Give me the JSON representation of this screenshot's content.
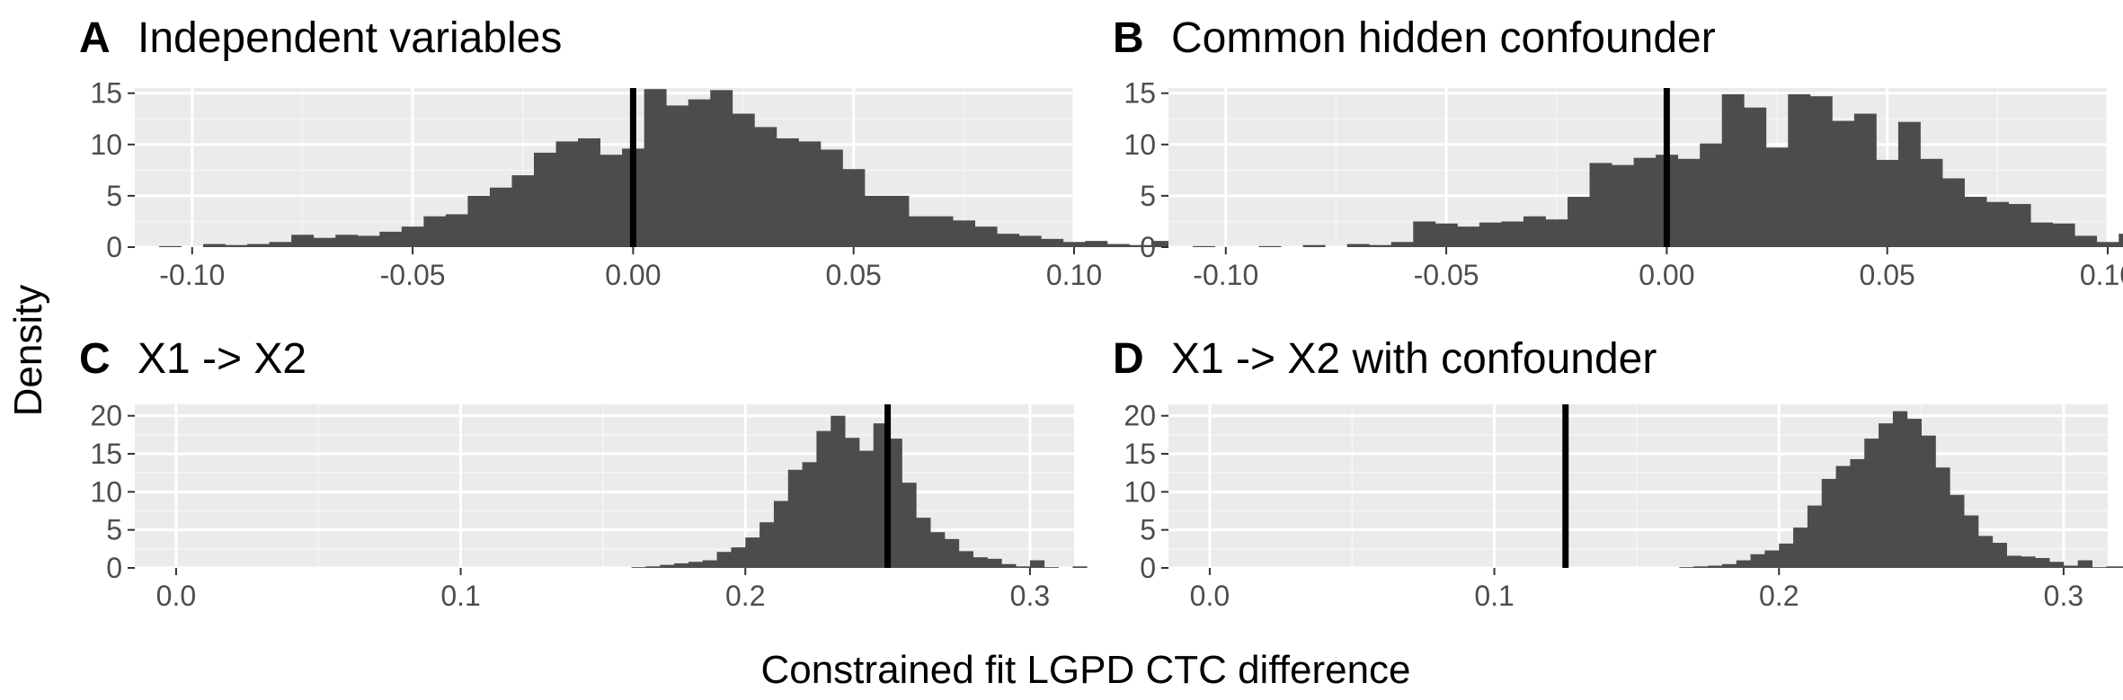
{
  "figure": {
    "ylabel": "Density",
    "xlabel": "Constrained fit LGPD CTC difference"
  },
  "colors": {
    "panel_background": "#ebebeb",
    "grid_major": "#ffffff",
    "grid_minor": "#f5f5f5",
    "bar_fill": "#4d4b4c",
    "reference_line": "#000000",
    "tick_text": "#4d4d4d"
  },
  "chart_data": [
    {
      "type": "bar",
      "tag": "A",
      "title": "Independent variables",
      "xlim": [
        -0.113,
        0.1
      ],
      "ylim": [
        0,
        15.5
      ],
      "xticks": [
        -0.1,
        -0.05,
        0.0,
        0.05,
        0.1
      ],
      "xtick_labels": [
        "-0.10",
        "-0.05",
        "0.00",
        "0.05",
        "0.10"
      ],
      "yticks": [
        0,
        5,
        10,
        15
      ],
      "ytick_labels": [
        "0",
        "5",
        "10",
        "15"
      ],
      "bins": {
        "start": -0.1075,
        "width": 0.005,
        "values": [
          0.1,
          0,
          0.3,
          0.2,
          0.3,
          0.5,
          1.2,
          0.9,
          1.2,
          1.1,
          1.5,
          2.0,
          3.0,
          3.2,
          5.0,
          5.8,
          7.0,
          9.2,
          10.3,
          10.6,
          9.0,
          9.6,
          15.4,
          13.8,
          14.4,
          15.3,
          13.0,
          11.7,
          10.6,
          10.3,
          9.5,
          7.6,
          5.0,
          5.0,
          3.0,
          3.0,
          2.6,
          2.0,
          1.3,
          1.1,
          0.8,
          0.5,
          0.6,
          0.3,
          0.2,
          0.6,
          0.1,
          0.1,
          0.2,
          0,
          0.1
        ]
      },
      "reference_line": 0.0
    },
    {
      "type": "bar",
      "tag": "B",
      "title": "Common hidden confounder",
      "xlim": [
        -0.113,
        0.1
      ],
      "ylim": [
        0,
        15.5
      ],
      "xticks": [
        -0.1,
        -0.05,
        0.0,
        0.05,
        0.1
      ],
      "xtick_labels": [
        "-0.10",
        "-0.05",
        "0.00",
        "0.05",
        "0.10"
      ],
      "yticks": [
        0,
        5,
        10,
        15
      ],
      "ytick_labels": [
        "0",
        "5",
        "10",
        "15"
      ],
      "bins": {
        "start": -0.1075,
        "width": 0.005,
        "values": [
          0.1,
          0,
          0,
          0.1,
          0,
          0.2,
          0,
          0.3,
          0.2,
          0.5,
          2.5,
          2.3,
          2.0,
          2.4,
          2.5,
          3.0,
          2.7,
          4.9,
          8.2,
          8.0,
          8.7,
          9.0,
          8.6,
          10.1,
          14.9,
          13.6,
          9.7,
          14.9,
          14.7,
          12.3,
          13.0,
          8.5,
          12.2,
          8.6,
          6.7,
          4.9,
          4.4,
          4.2,
          2.4,
          2.3,
          1.1,
          0.5,
          1.3,
          1.2,
          0.6,
          0.3,
          0.2,
          0.4,
          0,
          0,
          0
        ]
      },
      "reference_line": 0.0
    },
    {
      "type": "bar",
      "tag": "C",
      "title": "X1 -> X2",
      "xlim": [
        -0.0145,
        0.3155
      ],
      "ylim": [
        0,
        21.5
      ],
      "xticks": [
        0.0,
        0.1,
        0.2,
        0.3
      ],
      "xtick_labels": [
        "0.0",
        "0.1",
        "0.2",
        "0.3"
      ],
      "yticks": [
        0,
        5,
        10,
        15,
        20
      ],
      "ytick_labels": [
        "0",
        "5",
        "10",
        "15",
        "20"
      ],
      "bins": {
        "start": 0.16,
        "width": 0.005,
        "values": [
          0.1,
          0.2,
          0.4,
          0.6,
          0.8,
          1.0,
          2.1,
          2.7,
          4.0,
          6.0,
          8.8,
          12.9,
          13.9,
          18.0,
          20.0,
          17.1,
          15.4,
          19.0,
          17.0,
          11.2,
          6.6,
          4.7,
          3.8,
          2.2,
          1.4,
          1.2,
          0.5,
          0.2,
          1.0,
          0.1,
          0,
          0.2
        ]
      },
      "reference_line": 0.25
    },
    {
      "type": "bar",
      "tag": "D",
      "title": "X1 -> X2 with confounder",
      "xlim": [
        -0.0145,
        0.3155
      ],
      "ylim": [
        0,
        21.5
      ],
      "xticks": [
        0.0,
        0.1,
        0.2,
        0.3
      ],
      "xtick_labels": [
        "0.0",
        "0.1",
        "0.2",
        "0.3"
      ],
      "yticks": [
        0,
        5,
        10,
        15,
        20
      ],
      "ytick_labels": [
        "0",
        "5",
        "10",
        "15",
        "20"
      ],
      "bins": {
        "start": 0.165,
        "width": 0.005,
        "values": [
          0.1,
          0.2,
          0.3,
          0.5,
          1.0,
          1.8,
          2.3,
          3.2,
          5.3,
          8.2,
          11.7,
          13.4,
          14.3,
          17.0,
          19.0,
          20.6,
          19.6,
          17.4,
          13.2,
          9.6,
          6.9,
          4.2,
          3.3,
          1.6,
          1.5,
          1.3,
          0.8,
          0.3,
          1.0,
          0.1,
          0.2,
          0.2
        ]
      },
      "reference_line": 0.125
    }
  ]
}
